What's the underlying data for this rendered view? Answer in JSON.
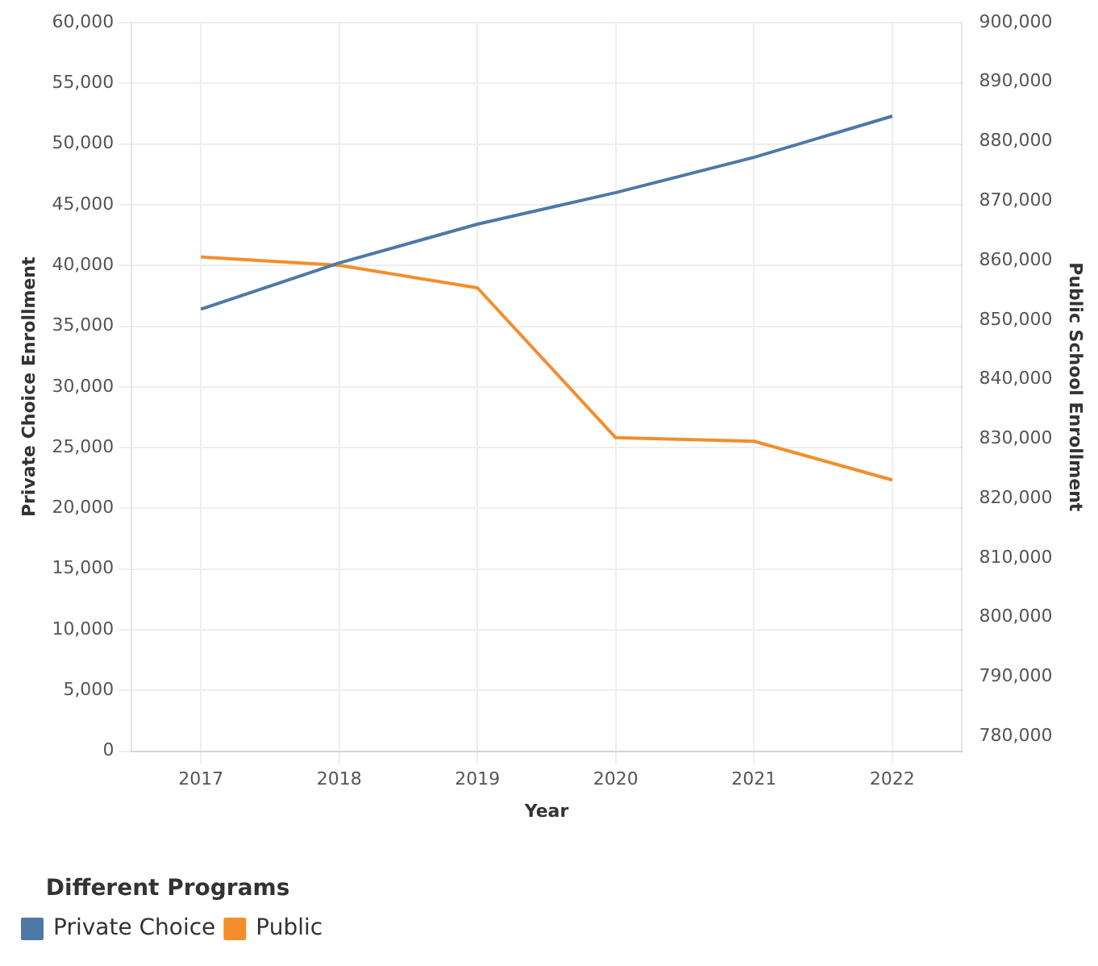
{
  "chart_data": {
    "type": "line",
    "xlabel": "Year",
    "ylabel": "Private Choice Enrollment",
    "y2label": "Public School Enrollment",
    "legend_title": "Different Programs",
    "categories": [
      "2017",
      "2018",
      "2019",
      "2020",
      "2021",
      "2022"
    ],
    "series": [
      {
        "name": "Private Choice",
        "color": "#4e79a7",
        "values": [
          36400,
          40200,
          43400,
          46000,
          48900,
          52300
        ]
      },
      {
        "name": "Public",
        "color": "#f28e2b",
        "axis": "y2",
        "values": [
          860600,
          859200,
          855400,
          830200,
          829600,
          823100
        ]
      }
    ],
    "ylim": [
      0,
      60000
    ],
    "yticks": [
      0,
      {
        "value": 5000,
        "label": "5,000"
      },
      {
        "value": 10000,
        "label": "10,000"
      },
      {
        "value": 15000,
        "label": "15,000"
      },
      {
        "value": 20000,
        "label": "20,000"
      },
      {
        "value": 25000,
        "label": "25,000"
      },
      {
        "value": 30000,
        "label": "30,000"
      },
      {
        "value": 35000,
        "label": "35,000"
      },
      {
        "value": 40000,
        "label": "40,000"
      },
      {
        "value": 45000,
        "label": "45,000"
      },
      {
        "value": 50000,
        "label": "50,000"
      },
      {
        "value": 55000,
        "label": "55,000"
      },
      {
        "value": 60000,
        "label": "60,000"
      }
    ],
    "y2lim": [
      777500,
      900000
    ],
    "y2ticks": [
      {
        "value": 780000,
        "label": "780,000"
      },
      {
        "value": 790000,
        "label": "790,000"
      },
      {
        "value": 800000,
        "label": "800,000"
      },
      {
        "value": 810000,
        "label": "810,000"
      },
      {
        "value": 820000,
        "label": "820,000"
      },
      {
        "value": 830000,
        "label": "830,000"
      },
      {
        "value": 840000,
        "label": "840,000"
      },
      {
        "value": 850000,
        "label": "850,000"
      },
      {
        "value": 860000,
        "label": "860,000"
      },
      {
        "value": 870000,
        "label": "870,000"
      },
      {
        "value": 880000,
        "label": "880,000"
      },
      {
        "value": 890000,
        "label": "890,000"
      },
      {
        "value": 900000,
        "label": "900,000"
      }
    ],
    "grid": true,
    "legend": "bottom left",
    "marker": "none",
    "line_style": "solid"
  }
}
